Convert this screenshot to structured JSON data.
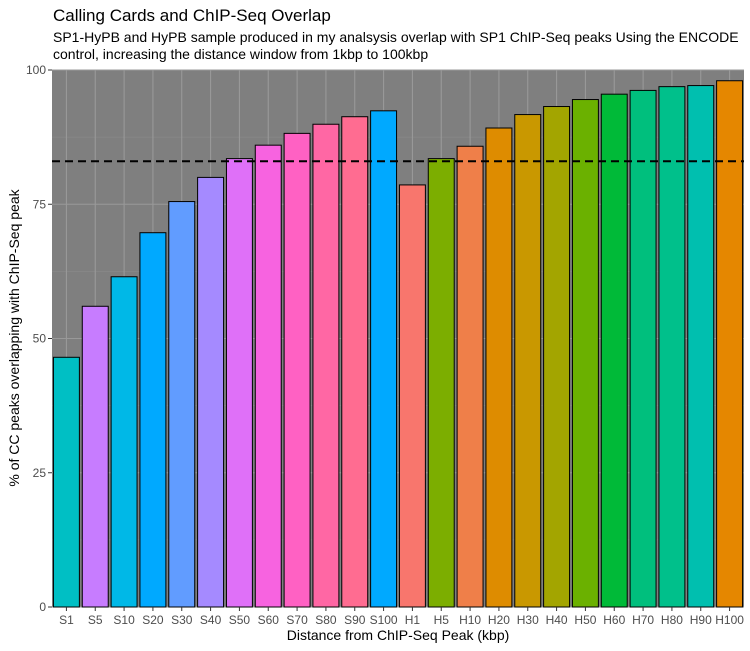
{
  "chart_data": {
    "type": "bar",
    "title": "Calling Cards and ChIP-Seq Overlap",
    "subtitle": "SP1-HyPB and HyPB sample produced in my analsysis overlap with SP1 ChIP-Seq peaks Using the ENCODE control, increasing the distance window from 1kbp to 100kbp",
    "xlabel": "Distance from ChIP-Seq Peak (kbp)",
    "ylabel": "% of CC peaks overlapping with ChIP-Seq peak",
    "ylim": [
      0,
      100
    ],
    "yticks": [
      0,
      25,
      50,
      75,
      100
    ],
    "grid": true,
    "legend": "none",
    "reference_line": {
      "y": 83,
      "style": "dashed",
      "color": "#000000"
    },
    "panel_background": "#7f7f7f",
    "categories": [
      "S1",
      "S5",
      "S10",
      "S20",
      "S30",
      "S40",
      "S50",
      "S60",
      "S70",
      "S80",
      "S90",
      "S100",
      "H1",
      "H5",
      "H10",
      "H20",
      "H30",
      "H40",
      "H50",
      "H60",
      "H70",
      "H80",
      "H90",
      "H100"
    ],
    "values": [
      46.5,
      56,
      61.5,
      69.7,
      75.5,
      80,
      83.5,
      86,
      88.2,
      89.9,
      91.3,
      92.4,
      78.6,
      83.5,
      85.8,
      89.2,
      91.7,
      93.2,
      94.5,
      95.5,
      96.2,
      96.9,
      97.1,
      98
    ],
    "colors": [
      "#00BFC4",
      "#C77CFF",
      "#00B8E7",
      "#00A9FF",
      "#619CFF",
      "#A58AFF",
      "#DF70F8",
      "#F763E0",
      "#FF61C3",
      "#FF67A4",
      "#FF6C91",
      "#00A9FF",
      "#F8766D",
      "#7CAE00",
      "#EF7F49",
      "#DE8C00",
      "#C99800",
      "#A3A500",
      "#6BB100",
      "#00BA38",
      "#00BF7D",
      "#00C08B",
      "#00BFAF",
      "#E58700"
    ]
  }
}
